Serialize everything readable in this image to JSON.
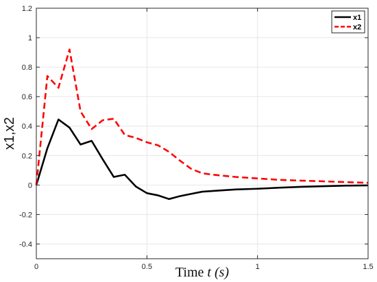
{
  "chart_data": {
    "type": "line",
    "title": "",
    "xlabel_parts": {
      "prefix": "Time ",
      "var": "t",
      "unit": "(s)"
    },
    "ylabel": "x1,x2",
    "xlim": [
      0,
      1.5
    ],
    "ylim": [
      -0.5,
      1.2
    ],
    "xticks": [
      0,
      0.5,
      1,
      1.5
    ],
    "xtick_labels": [
      "0",
      "0.5",
      "1",
      "1.5"
    ],
    "yticks": [
      -0.4,
      -0.2,
      0,
      0.2,
      0.4,
      0.6,
      0.8,
      1,
      1.2
    ],
    "ytick_labels": [
      "-0.4",
      "-0.2",
      "0",
      "0.2",
      "0.4",
      "0.6",
      "0.8",
      "1",
      "1.2"
    ],
    "grid": true,
    "legend_position": "top-right",
    "series": [
      {
        "name": "x1",
        "color": "#000000",
        "style": "solid",
        "x": [
          0,
          0.05,
          0.1,
          0.15,
          0.2,
          0.25,
          0.3,
          0.35,
          0.4,
          0.45,
          0.5,
          0.55,
          0.6,
          0.65,
          0.7,
          0.75,
          0.8,
          0.9,
          1.0,
          1.1,
          1.2,
          1.3,
          1.4,
          1.5
        ],
        "y": [
          0,
          0.25,
          0.445,
          0.39,
          0.275,
          0.3,
          0.175,
          0.055,
          0.07,
          -0.01,
          -0.055,
          -0.07,
          -0.095,
          -0.075,
          -0.06,
          -0.045,
          -0.04,
          -0.03,
          -0.025,
          -0.018,
          -0.012,
          -0.008,
          -0.004,
          -0.002
        ]
      },
      {
        "name": "x2",
        "color": "#ff0000",
        "style": "dashed",
        "x": [
          0,
          0.05,
          0.1,
          0.15,
          0.2,
          0.25,
          0.3,
          0.35,
          0.4,
          0.45,
          0.5,
          0.55,
          0.6,
          0.65,
          0.7,
          0.75,
          0.8,
          0.9,
          1.0,
          1.1,
          1.2,
          1.3,
          1.4,
          1.5
        ],
        "y": [
          0,
          0.74,
          0.66,
          0.92,
          0.5,
          0.38,
          0.44,
          0.45,
          0.34,
          0.32,
          0.29,
          0.27,
          0.225,
          0.165,
          0.11,
          0.08,
          0.07,
          0.055,
          0.045,
          0.035,
          0.03,
          0.025,
          0.02,
          0.015
        ]
      }
    ]
  }
}
